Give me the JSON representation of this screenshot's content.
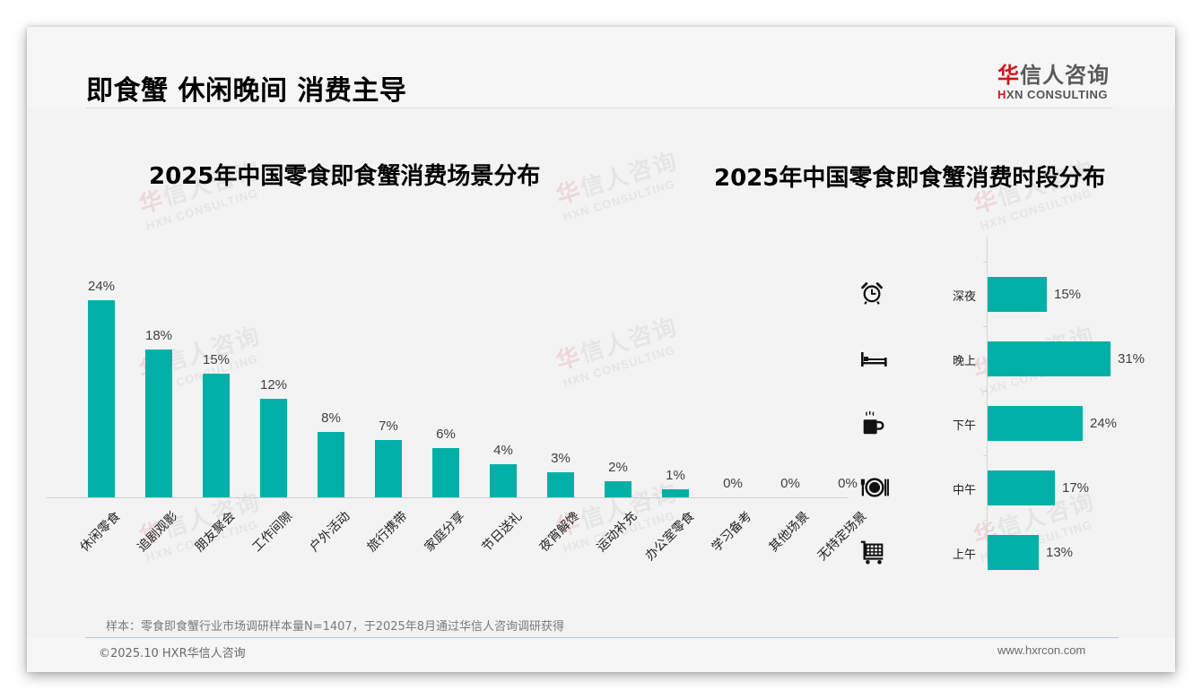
{
  "header": {
    "title": "即食蟹 休闲晚间 消费主导",
    "logo": {
      "cn_red": "华",
      "cn_rest": "信人咨询",
      "en_red": "H",
      "en_rest": "XN CONSULTING"
    }
  },
  "watermark": {
    "cn_red": "华",
    "cn_rest": "信人咨询",
    "en": "HXN CONSULTING"
  },
  "left_chart": {
    "title": "2025年中国零食即食蟹消费场景分布",
    "bars": [
      {
        "label": "休闲零食",
        "value": 24,
        "display": "24%"
      },
      {
        "label": "追剧观影",
        "value": 18,
        "display": "18%"
      },
      {
        "label": "朋友聚会",
        "value": 15,
        "display": "15%"
      },
      {
        "label": "工作间隙",
        "value": 12,
        "display": "12%"
      },
      {
        "label": "户外活动",
        "value": 8,
        "display": "8%"
      },
      {
        "label": "旅行携带",
        "value": 7,
        "display": "7%"
      },
      {
        "label": "家庭分享",
        "value": 6,
        "display": "6%"
      },
      {
        "label": "节日送礼",
        "value": 4,
        "display": "4%"
      },
      {
        "label": "夜宵解馋",
        "value": 3,
        "display": "3%"
      },
      {
        "label": "运动补充",
        "value": 2,
        "display": "2%"
      },
      {
        "label": "办公室零食",
        "value": 1,
        "display": "1%"
      },
      {
        "label": "学习备考",
        "value": 0,
        "display": "0%"
      },
      {
        "label": "其他场景",
        "value": 0,
        "display": "0%"
      },
      {
        "label": "无特定场景",
        "value": 0,
        "display": "0%"
      }
    ]
  },
  "right_chart": {
    "title": "2025年中国零食即食蟹消费时段分布",
    "bars": [
      {
        "label": "深夜",
        "value": 15,
        "display": "15%",
        "icon": "alarm-clock-icon"
      },
      {
        "label": "晚上",
        "value": 31,
        "display": "31%",
        "icon": "bed-icon"
      },
      {
        "label": "下午",
        "value": 24,
        "display": "24%",
        "icon": "coffee-cup-icon"
      },
      {
        "label": "中午",
        "value": 17,
        "display": "17%",
        "icon": "plate-cutlery-icon"
      },
      {
        "label": "上午",
        "value": 13,
        "display": "13%",
        "icon": "shopping-cart-icon"
      }
    ]
  },
  "footer": {
    "sample_note": "样本：零食即食蟹行业市场调研样本量N=1407，于2025年8月通过华信人咨询调研获得",
    "copyright": "©2025.10 HXR华信人咨询",
    "website": "www.hxrcon.com"
  },
  "colors": {
    "bar": "#00b0a6",
    "brand_red": "#d1161f",
    "text": "#000000"
  },
  "chart_data": [
    {
      "type": "bar",
      "title": "2025年中国零食即食蟹消费场景分布",
      "categories": [
        "休闲零食",
        "追剧观影",
        "朋友聚会",
        "工作间隙",
        "户外活动",
        "旅行携带",
        "家庭分享",
        "节日送礼",
        "夜宵解馋",
        "运动补充",
        "办公室零食",
        "学习备考",
        "其他场景",
        "无特定场景"
      ],
      "values": [
        24,
        18,
        15,
        12,
        8,
        7,
        6,
        4,
        3,
        2,
        1,
        0,
        0,
        0
      ],
      "unit": "%",
      "xlabel": "",
      "ylabel": "",
      "grid": false,
      "legend": null,
      "data_labels": true,
      "orientation": "vertical"
    },
    {
      "type": "bar",
      "title": "2025年中国零食即食蟹消费时段分布",
      "categories": [
        "深夜",
        "晚上",
        "下午",
        "中午",
        "上午"
      ],
      "values": [
        15,
        31,
        24,
        17,
        13
      ],
      "unit": "%",
      "xlabel": "",
      "ylabel": "",
      "grid": false,
      "legend": null,
      "data_labels": true,
      "orientation": "horizontal"
    }
  ]
}
